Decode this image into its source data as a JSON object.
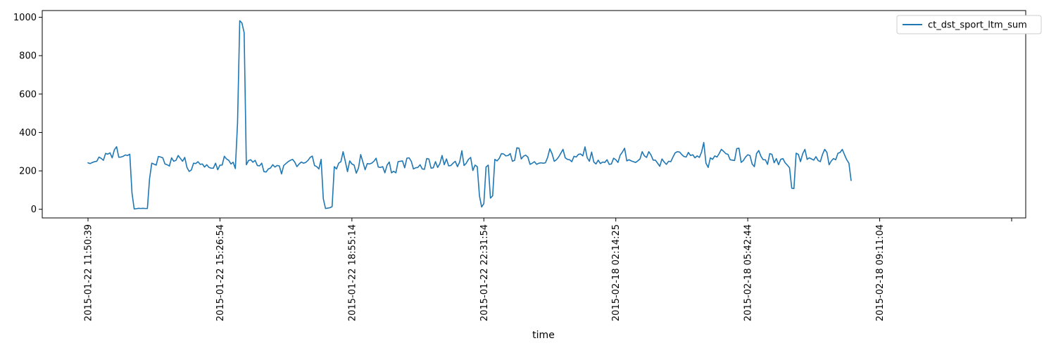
{
  "chart_data": {
    "type": "line",
    "title": "",
    "xlabel": "time",
    "ylabel": "",
    "ylim": [
      -45,
      1035
    ],
    "yticks": [
      0,
      200,
      400,
      600,
      800,
      1000
    ],
    "grid": false,
    "legend_position": "top-right",
    "x_tick_labels": [
      "2015-01-22 11:50:39",
      "2015-01-22 15:26:54",
      "2015-01-22 18:55:14",
      "2015-01-22 22:31:54",
      "2015-02-18 02:14:25",
      "2015-02-18 05:42:44",
      "2015-02-18 09:11:04",
      ""
    ],
    "x_tick_index": [
      0,
      60,
      120,
      180,
      240,
      300,
      360,
      420
    ],
    "series": [
      {
        "name": "ct_dst_sport_ltm_sum",
        "color": "#1f77b4",
        "values": [
          242,
          238,
          244,
          248,
          250,
          272,
          265,
          255,
          291,
          287,
          294,
          268,
          310,
          326,
          271,
          272,
          276,
          283,
          280,
          287,
          85,
          2,
          3,
          5,
          4,
          5,
          4,
          4,
          160,
          240,
          235,
          230,
          275,
          272,
          268,
          236,
          232,
          225,
          268,
          250,
          255,
          280,
          265,
          250,
          270,
          218,
          197,
          205,
          240,
          238,
          248,
          234,
          236,
          220,
          232,
          218,
          214,
          214,
          240,
          206,
          230,
          230,
          276,
          262,
          255,
          236,
          245,
          212,
          450,
          982,
          970,
          920,
          232,
          254,
          258,
          245,
          255,
          228,
          226,
          240,
          196,
          194,
          210,
          215,
          232,
          220,
          228,
          226,
          184,
          228,
          238,
          248,
          255,
          260,
          246,
          222,
          236,
          246,
          240,
          244,
          254,
          270,
          277,
          228,
          222,
          210,
          260,
          55,
          4,
          6,
          8,
          14,
          222,
          210,
          240,
          248,
          300,
          250,
          196,
          252,
          236,
          230,
          188,
          215,
          285,
          246,
          206,
          238,
          236,
          240,
          250,
          266,
          220,
          218,
          222,
          190,
          230,
          246,
          190,
          198,
          190,
          248,
          250,
          252,
          216,
          266,
          268,
          250,
          210,
          216,
          218,
          232,
          210,
          208,
          264,
          262,
          214,
          216,
          248,
          218,
          238,
          280,
          232,
          262,
          226,
          228,
          240,
          250,
          222,
          246,
          305,
          228,
          240,
          260,
          270,
          202,
          230,
          222,
          70,
          12,
          30,
          220,
          230,
          58,
          70,
          260,
          252,
          265,
          290,
          288,
          278,
          280,
          290,
          250,
          255,
          320,
          318,
          262,
          276,
          282,
          272,
          234,
          240,
          248,
          234,
          240,
          242,
          240,
          242,
          270,
          315,
          290,
          250,
          258,
          272,
          292,
          312,
          268,
          260,
          258,
          248,
          276,
          272,
          286,
          288,
          278,
          325,
          268,
          250,
          298,
          246,
          236,
          256,
          238,
          246,
          244,
          258,
          234,
          236,
          266,
          258,
          244,
          282,
          298,
          318,
          252,
          258,
          252,
          248,
          244,
          252,
          262,
          300,
          278,
          270,
          300,
          283,
          256,
          256,
          240,
          224,
          262,
          246,
          234,
          250,
          248,
          272,
          294,
          300,
          298,
          285,
          275,
          272,
          296,
          280,
          284,
          268,
          278,
          270,
          298,
          348,
          240,
          218,
          268,
          260,
          278,
          272,
          290,
          312,
          302,
          290,
          286,
          258,
          256,
          254,
          316,
          318,
          244,
          254,
          272,
          284,
          280,
          236,
          222,
          290,
          306,
          276,
          258,
          258,
          234,
          290,
          286,
          242,
          264,
          232,
          260,
          264,
          242,
          230,
          216,
          110,
          108,
          292,
          286,
          248,
          290,
          312,
          260,
          268,
          262,
          256,
          274,
          254,
          248,
          286,
          312,
          296,
          232,
          252,
          264,
          258,
          292,
          296,
          312,
          284,
          258,
          240,
          150
        ]
      }
    ]
  }
}
